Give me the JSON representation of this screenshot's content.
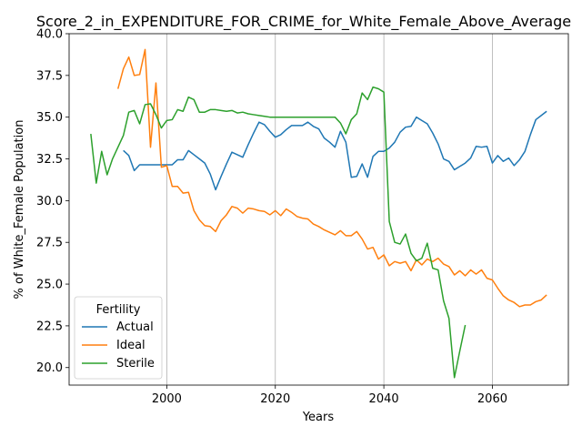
{
  "chart_data": {
    "type": "line",
    "title": "Score_2_in_EXPENDITURE_FOR_CRIME_for_White_Female_Above_Average",
    "xlabel": "Years",
    "ylabel": "% of White_Female Population",
    "xlim": [
      1982,
      2074
    ],
    "ylim": [
      18.95,
      40.0
    ],
    "xticks": [
      2000,
      2020,
      2040,
      2060
    ],
    "yticks": [
      20.0,
      22.5,
      25.0,
      27.5,
      30.0,
      32.5,
      35.0,
      37.5,
      40.0
    ],
    "grid": {
      "x": true,
      "y": false
    },
    "legend": {
      "title": "Fertility",
      "placement": "lower-left"
    },
    "series": [
      {
        "name": "Actual",
        "color": "#1f77b4",
        "x": [
          1992,
          1993,
          1994,
          1995,
          1996,
          1997,
          1998,
          1999,
          2000,
          2001,
          2002,
          2003,
          2004,
          2005,
          2006,
          2007,
          2008,
          2009,
          2010,
          2011,
          2012,
          2013,
          2014,
          2015,
          2016,
          2017,
          2018,
          2019,
          2020,
          2021,
          2022,
          2023,
          2024,
          2025,
          2026,
          2027,
          2028,
          2029,
          2030,
          2031,
          2032,
          2033,
          2034,
          2035,
          2036,
          2037,
          2038,
          2039,
          2040,
          2041,
          2042,
          2043,
          2044,
          2045,
          2046,
          2047,
          2048,
          2049,
          2050,
          2051,
          2052,
          2053,
          2054,
          2055,
          2056,
          2057,
          2058,
          2059,
          2060,
          2061,
          2062,
          2063,
          2064,
          2065,
          2066,
          2067,
          2068,
          2069,
          2070
        ],
        "y": [
          33.0,
          32.7,
          31.8,
          32.15,
          32.15,
          32.15,
          32.15,
          32.15,
          32.15,
          32.15,
          32.45,
          32.45,
          33.0,
          32.75,
          32.5,
          32.25,
          31.6,
          30.65,
          31.45,
          32.2,
          32.9,
          32.75,
          32.6,
          33.35,
          34.05,
          34.7,
          34.55,
          34.15,
          33.8,
          33.95,
          34.25,
          34.5,
          34.5,
          34.5,
          34.7,
          34.45,
          34.3,
          33.75,
          33.5,
          33.2,
          34.15,
          33.5,
          31.4,
          31.45,
          32.2,
          31.4,
          32.65,
          32.95,
          32.95,
          33.15,
          33.5,
          34.1,
          34.4,
          34.45,
          35.0,
          34.8,
          34.6,
          34.05,
          33.4,
          32.5,
          32.35,
          31.85,
          32.05,
          32.25,
          32.55,
          33.25,
          33.2,
          33.25,
          32.25,
          32.7,
          32.35,
          32.55,
          32.1,
          32.45,
          32.95,
          33.95,
          34.85,
          35.1,
          35.35
        ]
      },
      {
        "name": "Ideal",
        "color": "#ff7f0e",
        "x": [
          1991,
          1992,
          1993,
          1994,
          1995,
          1996,
          1997,
          1998,
          1999,
          2000,
          2001,
          2002,
          2003,
          2004,
          2005,
          2006,
          2007,
          2008,
          2009,
          2010,
          2011,
          2012,
          2013,
          2014,
          2015,
          2016,
          2017,
          2018,
          2019,
          2020,
          2021,
          2022,
          2023,
          2024,
          2025,
          2026,
          2027,
          2028,
          2029,
          2030,
          2031,
          2032,
          2033,
          2034,
          2035,
          2036,
          2037,
          2038,
          2039,
          2040,
          2041,
          2042,
          2043,
          2044,
          2045,
          2046,
          2047,
          2048,
          2049,
          2050,
          2051,
          2052,
          2053,
          2054,
          2055,
          2056,
          2057,
          2058,
          2059,
          2060,
          2061,
          2062,
          2063,
          2064,
          2065,
          2066,
          2067,
          2068,
          2069,
          2070
        ],
        "y": [
          36.7,
          37.9,
          38.6,
          37.5,
          37.55,
          39.05,
          33.2,
          37.05,
          32.0,
          32.1,
          30.85,
          30.85,
          30.45,
          30.5,
          29.4,
          28.85,
          28.5,
          28.45,
          28.15,
          28.8,
          29.15,
          29.65,
          29.55,
          29.25,
          29.55,
          29.5,
          29.4,
          29.35,
          29.15,
          29.4,
          29.1,
          29.5,
          29.3,
          29.05,
          28.95,
          28.9,
          28.6,
          28.45,
          28.25,
          28.1,
          27.95,
          28.2,
          27.9,
          27.9,
          28.15,
          27.7,
          27.1,
          27.2,
          26.5,
          26.75,
          26.1,
          26.35,
          26.25,
          26.35,
          25.8,
          26.45,
          26.15,
          26.5,
          26.35,
          26.55,
          26.2,
          26.05,
          25.55,
          25.8,
          25.5,
          25.85,
          25.6,
          25.85,
          25.35,
          25.25,
          24.75,
          24.3,
          24.05,
          23.9,
          23.65,
          23.75,
          23.75,
          23.95,
          24.05,
          24.35
        ]
      },
      {
        "name": "Sterile",
        "color": "#2ca02c",
        "x": [
          1986,
          1987,
          1988,
          1989,
          1990,
          1991,
          1992,
          1993,
          1994,
          1995,
          1996,
          1997,
          1998,
          1999,
          2000,
          2001,
          2002,
          2003,
          2004,
          2005,
          2006,
          2007,
          2008,
          2009,
          2010,
          2011,
          2012,
          2013,
          2014,
          2015,
          2016,
          2017,
          2018,
          2019,
          2020,
          2021,
          2022,
          2023,
          2024,
          2025,
          2026,
          2027,
          2028,
          2029,
          2030,
          2031,
          2032,
          2033,
          2034,
          2035,
          2036,
          2037,
          2038,
          2039,
          2040,
          2041,
          2042,
          2043,
          2044,
          2045,
          2046,
          2047,
          2048,
          2049,
          2050,
          2051,
          2052,
          2053,
          2054,
          2055
        ],
        "y": [
          34.0,
          31.05,
          32.95,
          31.55,
          32.5,
          33.2,
          33.9,
          35.3,
          35.4,
          34.6,
          35.75,
          35.8,
          35.15,
          34.35,
          34.8,
          34.85,
          35.45,
          35.35,
          36.2,
          36.05,
          35.3,
          35.3,
          35.45,
          35.45,
          35.4,
          35.35,
          35.4,
          35.25,
          35.3,
          35.2,
          35.15,
          35.1,
          35.05,
          35.0,
          35.0,
          35.0,
          35.0,
          35.0,
          35.0,
          35.0,
          35.0,
          35.0,
          35.0,
          35.0,
          35.0,
          35.0,
          34.65,
          34.0,
          34.85,
          35.2,
          36.45,
          36.05,
          36.8,
          36.7,
          36.5,
          28.75,
          27.5,
          27.4,
          28.0,
          26.85,
          26.4,
          26.55,
          27.45,
          25.95,
          25.85,
          24.0,
          22.95,
          19.4,
          21.0,
          22.55
        ]
      }
    ]
  }
}
